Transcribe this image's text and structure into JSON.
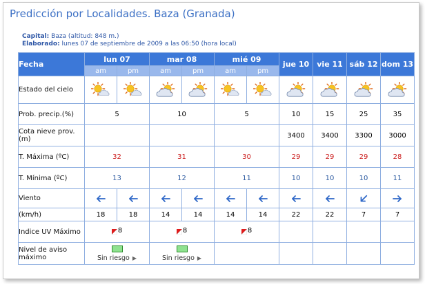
{
  "title": "Predicción por Localidades. Baza (Granada)",
  "capital_label": "Capital:",
  "capital_value": "Baza (altitud: 848 m.)",
  "elaborado_label": "Elaborado:",
  "elaborado_value": "lunes 07 de septiembre de 2009 a las 06:50 (hora local)",
  "header": {
    "fecha": "Fecha",
    "days": [
      "lun 07",
      "mar 08",
      "mié 09",
      "jue 10",
      "vie 11",
      "sáb 12",
      "dom 13"
    ],
    "am": "am",
    "pm": "pm"
  },
  "labels": {
    "estado": "Estado del cielo",
    "prob": "Prob. precip.(%)",
    "cota": "Cota nieve prov.(m)",
    "tmax": "T. Máxima (ºC)",
    "tmin": "T. Mínima (ºC)",
    "viento": "Viento",
    "kmh": "(km/h)",
    "uv": "Indice UV Máximo",
    "aviso": "Nivel de aviso máximo"
  },
  "sky_icons": [
    "sun-cloud-icon",
    "sun-cloud-icon",
    "cloud-sun-icon",
    "cloud-sun-icon",
    "sun-cloud-icon",
    "sun-cloud-icon",
    "cloud-sun-icon",
    "cloud-sun-icon",
    "cloud-sun-icon",
    "cloud-sun-icon"
  ],
  "prob": [
    "5",
    "10",
    "5",
    "10",
    "15",
    "25",
    "35"
  ],
  "cota": [
    "",
    "",
    "",
    "3400",
    "3400",
    "3300",
    "3000"
  ],
  "tmax": [
    "32",
    "31",
    "30",
    "29",
    "29",
    "29",
    "28"
  ],
  "tmin": [
    "13",
    "12",
    "11",
    "10",
    "10",
    "10",
    "11"
  ],
  "wind_dirs": [
    "arrow-left-icon",
    "arrow-left-icon",
    "arrow-left-icon",
    "arrow-left-icon",
    "arrow-left-icon",
    "arrow-left-icon",
    "arrow-left-icon",
    "arrow-left-icon",
    "arrow-down-left-icon",
    "arrow-right-icon"
  ],
  "wind_speeds": [
    "18",
    "18",
    "14",
    "14",
    "14",
    "14",
    "22",
    "22",
    "7",
    "7"
  ],
  "uv": [
    "8",
    "8",
    "8"
  ],
  "aviso": [
    "Sin riesgo",
    "Sin riesgo"
  ],
  "colors": {
    "header_bg": "#3c78d8",
    "subheader_bg": "#99b8ec",
    "title": "#3b6fc4",
    "tmax": "#cc1f1f",
    "tmin": "#2c5aa0",
    "arrow": "#2f68c8",
    "aviso_ok": "#8fe28f"
  }
}
